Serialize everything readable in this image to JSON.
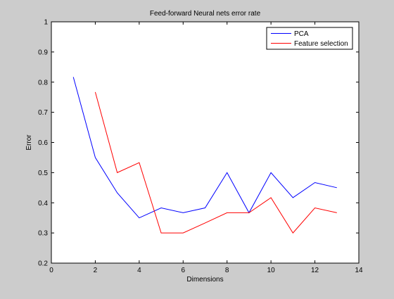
{
  "chart_data": {
    "type": "line",
    "title": "Feed-forward Neural nets error rate",
    "xlabel": "Dimensions",
    "ylabel": "Error",
    "xlim": [
      0,
      14
    ],
    "ylim": [
      0.2,
      1
    ],
    "xticks": [
      0,
      2,
      4,
      6,
      8,
      10,
      12,
      14
    ],
    "yticks": [
      0.2,
      0.3,
      0.4,
      0.5,
      0.6,
      0.7,
      0.8,
      0.9,
      1
    ],
    "xtick_labels": [
      "0",
      "2",
      "4",
      "6",
      "8",
      "10",
      "12",
      "14"
    ],
    "ytick_labels": [
      "0.2",
      "0.3",
      "0.4",
      "0.5",
      "0.6",
      "0.7",
      "0.8",
      "0.9",
      "1"
    ],
    "grid": false,
    "legend_position": "top-right",
    "series": [
      {
        "name": "PCA",
        "color": "#0000ff",
        "x": [
          1,
          2,
          3,
          4,
          5,
          6,
          7,
          8,
          9,
          10,
          11,
          12,
          13
        ],
        "y": [
          0.817,
          0.55,
          0.433,
          0.35,
          0.383,
          0.367,
          0.383,
          0.5,
          0.367,
          0.5,
          0.417,
          0.467,
          0.45
        ]
      },
      {
        "name": "Feature selection",
        "color": "#ff0000",
        "x": [
          2,
          3,
          4,
          5,
          6,
          7,
          8,
          9,
          10,
          11,
          12,
          13
        ],
        "y": [
          0.767,
          0.5,
          0.533,
          0.3,
          0.3,
          0.333,
          0.367,
          0.367,
          0.417,
          0.3,
          0.383,
          0.367
        ]
      }
    ]
  }
}
